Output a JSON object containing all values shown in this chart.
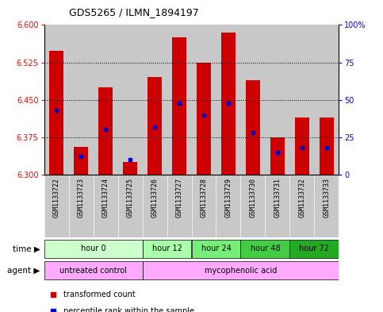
{
  "title": "GDS5265 / ILMN_1894197",
  "samples": [
    "GSM1133722",
    "GSM1133723",
    "GSM1133724",
    "GSM1133725",
    "GSM1133726",
    "GSM1133727",
    "GSM1133728",
    "GSM1133729",
    "GSM1133730",
    "GSM1133731",
    "GSM1133732",
    "GSM1133733"
  ],
  "transformed_counts": [
    6.548,
    6.355,
    6.475,
    6.325,
    6.495,
    6.575,
    6.525,
    6.585,
    6.49,
    6.375,
    6.415,
    6.415
  ],
  "percentile_ranks": [
    43,
    12,
    30,
    10,
    32,
    48,
    40,
    48,
    28,
    15,
    18,
    18
  ],
  "y_min": 6.3,
  "y_max": 6.6,
  "yticks_left": [
    6.3,
    6.375,
    6.45,
    6.525,
    6.6
  ],
  "yticks_right": [
    0,
    25,
    50,
    75,
    100
  ],
  "bar_color": "#cc0000",
  "blue_color": "#0000cc",
  "time_groups": [
    {
      "label": "hour 0",
      "start": 0,
      "end": 4,
      "color": "#ccffcc"
    },
    {
      "label": "hour 12",
      "start": 4,
      "end": 6,
      "color": "#aaffaa"
    },
    {
      "label": "hour 24",
      "start": 6,
      "end": 8,
      "color": "#77ee77"
    },
    {
      "label": "hour 48",
      "start": 8,
      "end": 10,
      "color": "#44cc44"
    },
    {
      "label": "hour 72",
      "start": 10,
      "end": 12,
      "color": "#22aa22"
    }
  ],
  "agent_groups": [
    {
      "label": "untreated control",
      "start": 0,
      "end": 4,
      "color": "#ffaaff"
    },
    {
      "label": "mycophenolic acid",
      "start": 4,
      "end": 12,
      "color": "#ffaaff"
    }
  ],
  "sample_bg_color": "#c8c8c8",
  "legend_red_label": "transformed count",
  "legend_blue_label": "percentile rank within the sample"
}
